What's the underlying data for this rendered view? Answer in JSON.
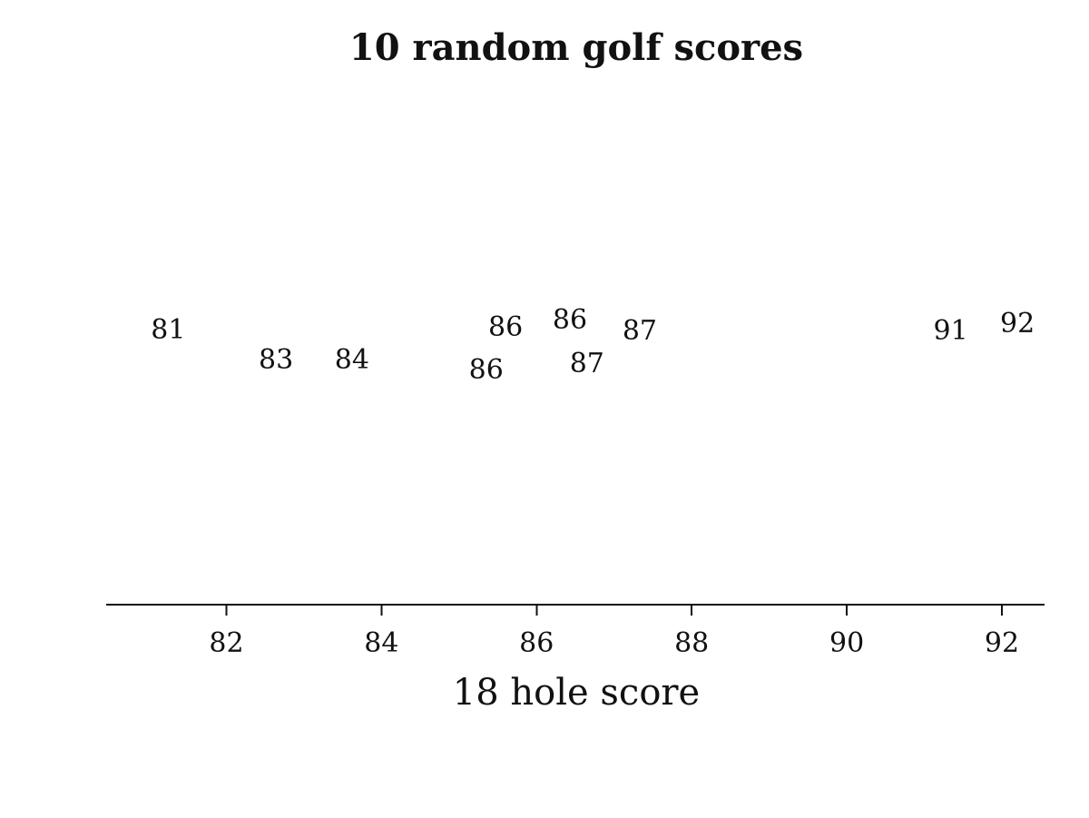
{
  "chart_data": {
    "type": "scatter",
    "title": "10 random golf scores",
    "xlabel": "18 hole score",
    "ylabel": "",
    "xlim": [
      80.45,
      92.55
    ],
    "x_ticks": [
      82,
      84,
      86,
      88,
      90,
      92
    ],
    "grid": false,
    "legend": "none",
    "marker": "value-text",
    "jitter": "random vertical jitter",
    "points": [
      {
        "x": 81.25,
        "label": "81"
      },
      {
        "x": 82.64,
        "label": "83"
      },
      {
        "x": 83.62,
        "label": "84"
      },
      {
        "x": 85.35,
        "label": "86"
      },
      {
        "x": 85.6,
        "label": "86"
      },
      {
        "x": 86.43,
        "label": "86"
      },
      {
        "x": 86.65,
        "label": "87"
      },
      {
        "x": 87.33,
        "label": "87"
      },
      {
        "x": 91.34,
        "label": "91"
      },
      {
        "x": 92.2,
        "label": "92"
      }
    ]
  }
}
